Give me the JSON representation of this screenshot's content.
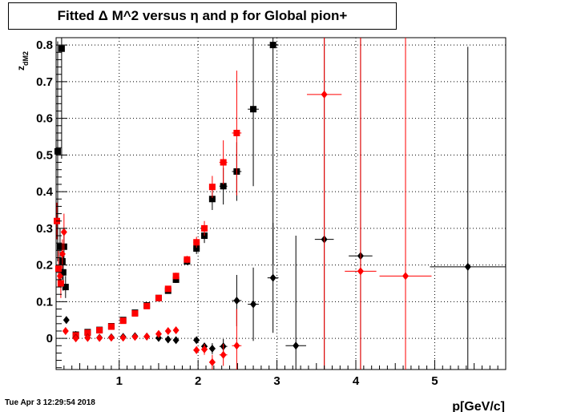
{
  "chart_data": {
    "type": "scatter",
    "title": "Fitted Δ M^2 versus η and p for Global pion+",
    "xlabel": "p[GeV/c]",
    "ylabel": "z_dM2",
    "ylabel_main": "z",
    "ylabel_sub": "dM2",
    "xlim": [
      0.2,
      5.9
    ],
    "ylim": [
      -0.085,
      0.82
    ],
    "x_ticks": [
      1,
      2,
      3,
      4,
      5
    ],
    "y_ticks": [
      0,
      0.1,
      0.2,
      0.3,
      0.4,
      0.5,
      0.6,
      0.7,
      0.8
    ],
    "x_tick_labels": [
      "1",
      "2",
      "3",
      "4",
      "5"
    ],
    "y_tick_labels": [
      "0",
      "0.1",
      "0.2",
      "0.3",
      "0.4",
      "0.5",
      "0.6",
      "0.7",
      "0.8"
    ],
    "grid": true,
    "series": [
      {
        "marker": "square",
        "color": "#000000",
        "points": [
          {
            "x": 0.22,
            "y": 0.51,
            "ex": 0.01,
            "ey": 0.3
          },
          {
            "x": 0.25,
            "y": 0.25,
            "ex": 0.01,
            "ey": 0.05
          },
          {
            "x": 0.27,
            "y": 0.79,
            "ex": 0.01,
            "ey": 0.3
          },
          {
            "x": 0.28,
            "y": 0.21,
            "ex": 0.01,
            "ey": 0.05
          },
          {
            "x": 0.29,
            "y": 0.18,
            "ex": 0.01,
            "ey": 0.05
          },
          {
            "x": 0.3,
            "y": 0.25,
            "ex": 0.01,
            "ey": 0.04
          },
          {
            "x": 0.32,
            "y": 0.14,
            "ex": 0.01,
            "ey": 0.03
          },
          {
            "x": 0.45,
            "y": 0.01,
            "ex": 0.03,
            "ey": 0.01
          },
          {
            "x": 0.6,
            "y": 0.017,
            "ex": 0.03,
            "ey": 0.005
          },
          {
            "x": 0.75,
            "y": 0.023,
            "ex": 0.03,
            "ey": 0.005
          },
          {
            "x": 0.9,
            "y": 0.033,
            "ex": 0.03,
            "ey": 0.005
          },
          {
            "x": 1.05,
            "y": 0.05,
            "ex": 0.03,
            "ey": 0.005
          },
          {
            "x": 1.2,
            "y": 0.07,
            "ex": 0.03,
            "ey": 0.006
          },
          {
            "x": 1.35,
            "y": 0.09,
            "ex": 0.03,
            "ey": 0.007
          },
          {
            "x": 1.5,
            "y": 0.11,
            "ex": 0.03,
            "ey": 0.008
          },
          {
            "x": 1.62,
            "y": 0.13,
            "ex": 0.03,
            "ey": 0.008
          },
          {
            "x": 1.72,
            "y": 0.16,
            "ex": 0.03,
            "ey": 0.009
          },
          {
            "x": 1.86,
            "y": 0.21,
            "ex": 0.04,
            "ey": 0.01
          },
          {
            "x": 1.98,
            "y": 0.245,
            "ex": 0.04,
            "ey": 0.015
          },
          {
            "x": 2.08,
            "y": 0.28,
            "ex": 0.04,
            "ey": 0.02
          },
          {
            "x": 2.18,
            "y": 0.38,
            "ex": 0.04,
            "ey": 0.03
          },
          {
            "x": 2.32,
            "y": 0.415,
            "ex": 0.05,
            "ey": 0.05
          },
          {
            "x": 2.49,
            "y": 0.455,
            "ex": 0.06,
            "ey": 0.08
          },
          {
            "x": 2.7,
            "y": 0.625,
            "ex": 0.07,
            "ey": 0.21
          },
          {
            "x": 2.95,
            "y": 0.8,
            "ex": 0.07,
            "ey": 0.6
          }
        ]
      },
      {
        "marker": "square",
        "color": "#ff0000",
        "points": [
          {
            "x": 0.21,
            "y": 0.32,
            "ex": 0.01,
            "ey": 0.05
          },
          {
            "x": 0.23,
            "y": 0.19,
            "ex": 0.01,
            "ey": 0.05
          },
          {
            "x": 0.26,
            "y": 0.15,
            "ex": 0.01,
            "ey": 0.04
          },
          {
            "x": 0.45,
            "y": 0.008,
            "ex": 0.03,
            "ey": 0.004
          },
          {
            "x": 0.6,
            "y": 0.015,
            "ex": 0.03,
            "ey": 0.004
          },
          {
            "x": 0.75,
            "y": 0.022,
            "ex": 0.03,
            "ey": 0.005
          },
          {
            "x": 0.9,
            "y": 0.032,
            "ex": 0.03,
            "ey": 0.005
          },
          {
            "x": 1.05,
            "y": 0.048,
            "ex": 0.03,
            "ey": 0.005
          },
          {
            "x": 1.2,
            "y": 0.068,
            "ex": 0.03,
            "ey": 0.006
          },
          {
            "x": 1.35,
            "y": 0.088,
            "ex": 0.03,
            "ey": 0.007
          },
          {
            "x": 1.5,
            "y": 0.11,
            "ex": 0.03,
            "ey": 0.008
          },
          {
            "x": 1.62,
            "y": 0.135,
            "ex": 0.03,
            "ey": 0.008
          },
          {
            "x": 1.72,
            "y": 0.17,
            "ex": 0.03,
            "ey": 0.009
          },
          {
            "x": 1.86,
            "y": 0.215,
            "ex": 0.04,
            "ey": 0.01
          },
          {
            "x": 1.98,
            "y": 0.262,
            "ex": 0.04,
            "ey": 0.015
          },
          {
            "x": 2.08,
            "y": 0.3,
            "ex": 0.04,
            "ey": 0.02
          },
          {
            "x": 2.18,
            "y": 0.413,
            "ex": 0.04,
            "ey": 0.03
          },
          {
            "x": 2.32,
            "y": 0.48,
            "ex": 0.05,
            "ey": 0.06
          },
          {
            "x": 2.49,
            "y": 0.56,
            "ex": 0.06,
            "ey": 0.17
          }
        ]
      },
      {
        "marker": "diamond",
        "color": "#000000",
        "points": [
          {
            "x": 0.33,
            "y": 0.05,
            "ex": 0.01,
            "ey": 0.01
          },
          {
            "x": 0.45,
            "y": 0.001,
            "ex": 0.03,
            "ey": 0.002
          },
          {
            "x": 0.6,
            "y": 0.002,
            "ex": 0.03,
            "ey": 0.002
          },
          {
            "x": 0.75,
            "y": 0.002,
            "ex": 0.03,
            "ey": 0.002
          },
          {
            "x": 0.9,
            "y": 0.003,
            "ex": 0.03,
            "ey": 0.002
          },
          {
            "x": 1.05,
            "y": 0.004,
            "ex": 0.03,
            "ey": 0.002
          },
          {
            "x": 1.2,
            "y": 0.006,
            "ex": 0.03,
            "ey": 0.003
          },
          {
            "x": 1.35,
            "y": 0.005,
            "ex": 0.03,
            "ey": 0.003
          },
          {
            "x": 1.5,
            "y": 0.001,
            "ex": 0.03,
            "ey": 0.004
          },
          {
            "x": 1.62,
            "y": -0.003,
            "ex": 0.03,
            "ey": 0.005
          },
          {
            "x": 1.72,
            "y": -0.005,
            "ex": 0.03,
            "ey": 0.006
          },
          {
            "x": 1.98,
            "y": -0.005,
            "ex": 0.04,
            "ey": 0.008
          },
          {
            "x": 2.08,
            "y": -0.022,
            "ex": 0.04,
            "ey": 0.01
          },
          {
            "x": 2.18,
            "y": -0.028,
            "ex": 0.04,
            "ey": 0.015
          },
          {
            "x": 2.32,
            "y": -0.022,
            "ex": 0.05,
            "ey": 0.02
          },
          {
            "x": 2.49,
            "y": 0.103,
            "ex": 0.06,
            "ey": 0.07
          },
          {
            "x": 2.7,
            "y": 0.093,
            "ex": 0.07,
            "ey": 0.1
          },
          {
            "x": 2.95,
            "y": 0.165,
            "ex": 0.07,
            "ey": 0.15
          },
          {
            "x": 3.24,
            "y": -0.02,
            "ex": 0.13,
            "ey": 0.3
          },
          {
            "x": 3.6,
            "y": 0.27,
            "ex": 0.12,
            "ey": 0.55
          },
          {
            "x": 4.06,
            "y": 0.225,
            "ex": 0.15,
            "ey": 0.6
          },
          {
            "x": 5.42,
            "y": 0.195,
            "ex": 0.48,
            "ey": 0.6
          }
        ]
      },
      {
        "marker": "diamond",
        "color": "#ff0000",
        "points": [
          {
            "x": 0.25,
            "y": 0.17,
            "ex": 0.01,
            "ey": 0.03
          },
          {
            "x": 0.28,
            "y": 0.23,
            "ex": 0.01,
            "ey": 0.04
          },
          {
            "x": 0.3,
            "y": 0.29,
            "ex": 0.01,
            "ey": 0.05
          },
          {
            "x": 0.32,
            "y": 0.02,
            "ex": 0.01,
            "ey": 0.01
          },
          {
            "x": 0.45,
            "y": 0.0,
            "ex": 0.03,
            "ey": 0.002
          },
          {
            "x": 0.6,
            "y": 0.001,
            "ex": 0.03,
            "ey": 0.002
          },
          {
            "x": 0.75,
            "y": 0.001,
            "ex": 0.03,
            "ey": 0.002
          },
          {
            "x": 0.9,
            "y": 0.002,
            "ex": 0.03,
            "ey": 0.002
          },
          {
            "x": 1.05,
            "y": 0.002,
            "ex": 0.03,
            "ey": 0.002
          },
          {
            "x": 1.2,
            "y": 0.004,
            "ex": 0.03,
            "ey": 0.003
          },
          {
            "x": 1.35,
            "y": 0.005,
            "ex": 0.03,
            "ey": 0.003
          },
          {
            "x": 1.5,
            "y": 0.012,
            "ex": 0.03,
            "ey": 0.004
          },
          {
            "x": 1.62,
            "y": 0.02,
            "ex": 0.03,
            "ey": 0.005
          },
          {
            "x": 1.72,
            "y": 0.022,
            "ex": 0.03,
            "ey": 0.006
          },
          {
            "x": 1.98,
            "y": -0.032,
            "ex": 0.04,
            "ey": 0.01
          },
          {
            "x": 2.08,
            "y": -0.03,
            "ex": 0.04,
            "ey": 0.015
          },
          {
            "x": 2.18,
            "y": -0.065,
            "ex": 0.04,
            "ey": 0.02
          },
          {
            "x": 2.32,
            "y": -0.045,
            "ex": 0.05,
            "ey": 0.03
          },
          {
            "x": 2.49,
            "y": -0.02,
            "ex": 0.06,
            "ey": 0.1
          },
          {
            "x": 3.6,
            "y": 0.665,
            "ex": 0.22,
            "ey": 0.8
          },
          {
            "x": 4.06,
            "y": 0.183,
            "ex": 0.2,
            "ey": 0.8
          },
          {
            "x": 4.63,
            "y": 0.17,
            "ex": 0.33,
            "ey": 0.8
          }
        ]
      }
    ]
  },
  "timestamp": "Tue Apr  3 12:29:54 2018"
}
